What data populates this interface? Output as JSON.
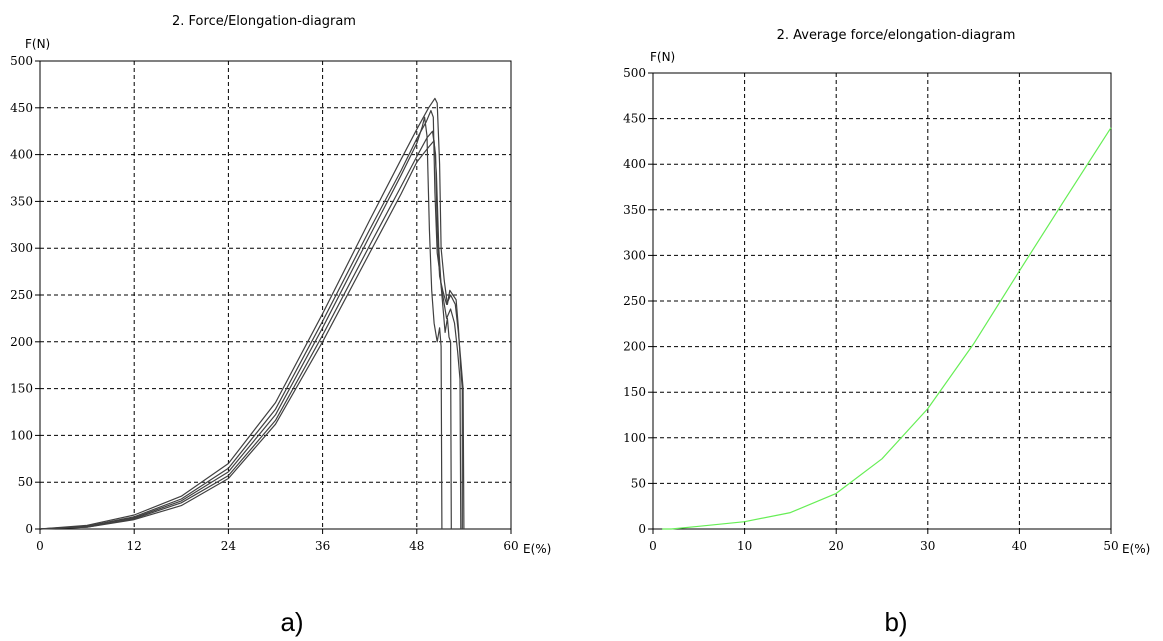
{
  "chart_data": [
    {
      "type": "line",
      "title": "2.  Force/Elongation-diagram",
      "xlabel": "E(%)",
      "ylabel": "F(N)",
      "xlim": [
        0,
        60
      ],
      "ylim": [
        0,
        500
      ],
      "xticks": [
        0,
        12,
        24,
        36,
        48,
        60
      ],
      "yticks": [
        0,
        50,
        100,
        150,
        200,
        250,
        300,
        350,
        400,
        450,
        500
      ],
      "grid": true,
      "caption": "a)",
      "line_color": "#404040",
      "series": [
        {
          "x": [
            0,
            6,
            12,
            18,
            24,
            30,
            36,
            42,
            46,
            48,
            49.5,
            50.3,
            50.6,
            50.9,
            51.1,
            51.5,
            51.9,
            52.2,
            52.6,
            53.0,
            53.3,
            53.6,
            53.8,
            53.8
          ],
          "y": [
            0,
            4,
            15,
            35,
            70,
            135,
            230,
            330,
            395,
            427,
            450,
            460,
            455,
            390,
            300,
            265,
            240,
            255,
            250,
            245,
            215,
            170,
            150,
            0
          ]
        },
        {
          "x": [
            0,
            6,
            12,
            18,
            24,
            30,
            36,
            42,
            46,
            48,
            49.2,
            49.8,
            50.1,
            50.3,
            50.6,
            51.0,
            51.4,
            51.6,
            51.9,
            52.1,
            52.3,
            52.4
          ],
          "y": [
            0,
            3,
            13,
            32,
            65,
            128,
            222,
            320,
            383,
            417,
            435,
            447,
            440,
            360,
            295,
            270,
            230,
            210,
            225,
            205,
            200,
            0
          ]
        },
        {
          "x": [
            0,
            6,
            12,
            18,
            24,
            30,
            36,
            42,
            46,
            48,
            48.7,
            49.0,
            49.3,
            49.6,
            49.9,
            50.2,
            50.6,
            50.9,
            51.1,
            51.2
          ],
          "y": [
            0,
            3,
            12,
            30,
            61,
            122,
            215,
            313,
            378,
            412,
            430,
            440,
            420,
            320,
            255,
            220,
            200,
            215,
            195,
            0
          ]
        },
        {
          "x": [
            0,
            6,
            12,
            18,
            24,
            30,
            36,
            42,
            46,
            48,
            49.3,
            50.0,
            50.4,
            50.6,
            50.9,
            51.3,
            51.8,
            52.3,
            52.9,
            53.3,
            53.6,
            53.9,
            54.0
          ],
          "y": [
            0,
            2,
            11,
            28,
            57,
            116,
            207,
            303,
            366,
            398,
            418,
            425,
            400,
            320,
            270,
            255,
            240,
            250,
            240,
            210,
            180,
            150,
            0
          ]
        },
        {
          "x": [
            0,
            6,
            12,
            18,
            24,
            30,
            36,
            42,
            46,
            48,
            49.5,
            50.2,
            50.5,
            50.8,
            51.1,
            51.4,
            51.8,
            52.3,
            52.8,
            53.2,
            53.5,
            53.6
          ],
          "y": [
            0,
            2,
            10,
            25,
            54,
            112,
            200,
            295,
            358,
            392,
            408,
            415,
            380,
            300,
            260,
            245,
            225,
            235,
            220,
            190,
            160,
            0
          ]
        }
      ]
    },
    {
      "type": "line",
      "title": "2.  Average force/elongation-diagram",
      "xlabel": "E(%)",
      "ylabel": "F(N)",
      "xlim": [
        0,
        50
      ],
      "ylim": [
        0,
        500
      ],
      "xticks": [
        0,
        10,
        20,
        30,
        40,
        50
      ],
      "yticks": [
        0,
        50,
        100,
        150,
        200,
        250,
        300,
        350,
        400,
        450,
        500
      ],
      "grid": true,
      "caption": "b)",
      "line_color": "#66ee55",
      "series": [
        {
          "x": [
            1,
            2,
            5,
            10,
            15,
            20,
            25,
            30,
            35,
            40,
            45,
            50
          ],
          "y": [
            0,
            0,
            3,
            8,
            18,
            39,
            77,
            132,
            203,
            283,
            362,
            440
          ]
        }
      ]
    }
  ]
}
